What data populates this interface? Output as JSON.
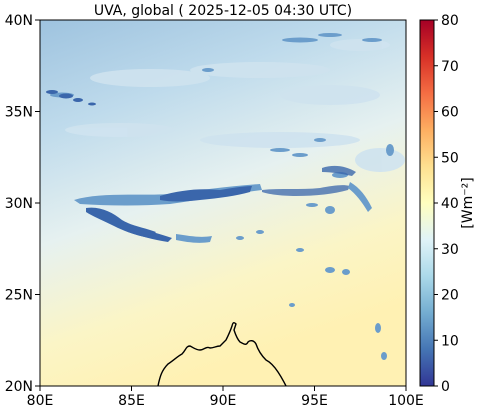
{
  "title": "UVA, global ( 2025-12-05 04:30 UTC)",
  "map": {
    "lon_range": [
      80,
      100
    ],
    "lat_range": [
      20,
      40
    ],
    "x_ticks": [
      {
        "value": 80,
        "label": "80E"
      },
      {
        "value": 85,
        "label": "85E"
      },
      {
        "value": 90,
        "label": "90E"
      },
      {
        "value": 95,
        "label": "95E"
      },
      {
        "value": 100,
        "label": "100E"
      }
    ],
    "y_ticks": [
      {
        "value": 20,
        "label": "20N"
      },
      {
        "value": 25,
        "label": "25N"
      },
      {
        "value": 30,
        "label": "30N"
      },
      {
        "value": 35,
        "label": "35N"
      },
      {
        "value": 40,
        "label": "40N"
      }
    ]
  },
  "colorbar": {
    "label": "[Wm⁻²]",
    "range": [
      0,
      80
    ],
    "colormap": "RdYlBu_r",
    "ticks": [
      {
        "value": 0,
        "label": "0"
      },
      {
        "value": 10,
        "label": "10"
      },
      {
        "value": 20,
        "label": "20"
      },
      {
        "value": 30,
        "label": "30"
      },
      {
        "value": 40,
        "label": "40"
      },
      {
        "value": 50,
        "label": "50"
      },
      {
        "value": 60,
        "label": "60"
      },
      {
        "value": 70,
        "label": "70"
      },
      {
        "value": 80,
        "label": "80"
      }
    ],
    "stops": [
      "#313695",
      "#4575b4",
      "#74add1",
      "#abd9e9",
      "#e0f3f8",
      "#ffffbf",
      "#fee090",
      "#fdae61",
      "#f46d43",
      "#d73027",
      "#a50026"
    ]
  },
  "field_colors": {
    "north_top": "#9ec3df",
    "north_mid": "#bfdbec",
    "middle": "#e6f1f0",
    "south": "#fbf5c6",
    "south_east": "#fff1b3",
    "cloud_dark": "#3a66ab",
    "cloud_mid": "#6b9dcb",
    "cloud_light": "#cfe3ef"
  }
}
